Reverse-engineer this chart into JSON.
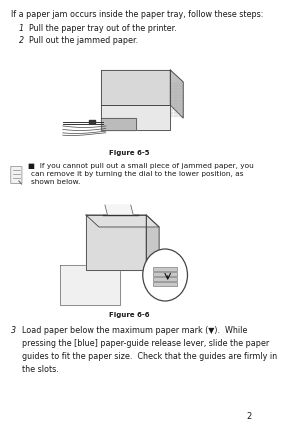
{
  "bg_color": "#ffffff",
  "border_color": "#000000",
  "page_number": "2",
  "intro_text": "If a paper jam occurs inside the paper tray, follow these steps:",
  "step1_num": "1",
  "step1_text": "Pull the paper tray out of the printer.",
  "step2_num": "2",
  "step2_text": "Pull out the jammed paper.",
  "figure1_caption": "Figure 6-5",
  "note_bullet": "■",
  "note_text": "If you cannot pull out a small piece of jammed paper, you\ncan remove it by turning the dial to the lower position, as\nshown below.",
  "figure2_caption": "Figure 6-6",
  "step3_num": "3",
  "step3_line1": "Load paper below the maximum paper mark (▼).  While",
  "step3_line2": "pressing the [blue] paper-guide release lever, slide the paper",
  "step3_line3": "guides to fit the paper size.  Check that the guides are firmly in",
  "step3_line4": "the slots.",
  "text_color": "#1a1a1a",
  "font_family": "DejaVu Sans",
  "note_icon_color": "#888888"
}
